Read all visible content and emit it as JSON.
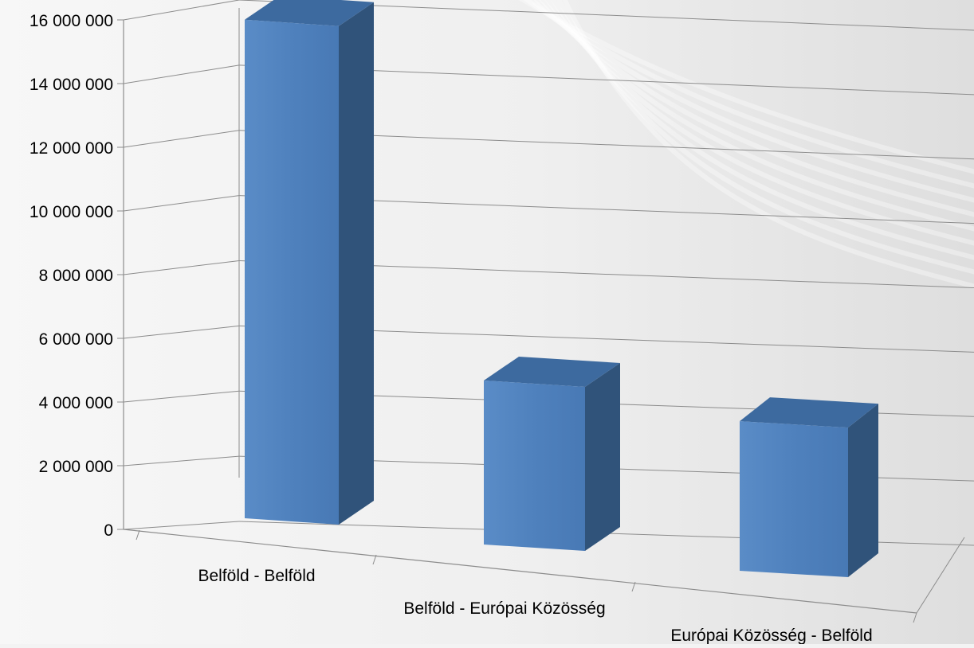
{
  "chart_data": {
    "type": "bar",
    "categories": [
      "Belföld - Belföld",
      "Belföld - Európai Közösség",
      "Európai Közösség - Belföld"
    ],
    "values": [
      15500000,
      5100000,
      4650000
    ],
    "ylim": [
      0,
      16000000
    ],
    "yticks": [
      0,
      2000000,
      4000000,
      6000000,
      8000000,
      10000000,
      12000000,
      14000000,
      16000000
    ],
    "ytick_labels": [
      "0",
      "2 000 000",
      "4 000 000",
      "6 000 000",
      "8 000 000",
      "10 000 000",
      "12 000 000",
      "14 000 000",
      "16 000 000"
    ],
    "grid": true,
    "style": "3d-column",
    "colors": {
      "bar_front": "#4f81bd",
      "bar_side": "#30537a",
      "bar_top": "#3d6a9f",
      "grid": "#8c8c8c",
      "background": "#f3f3f3"
    }
  }
}
